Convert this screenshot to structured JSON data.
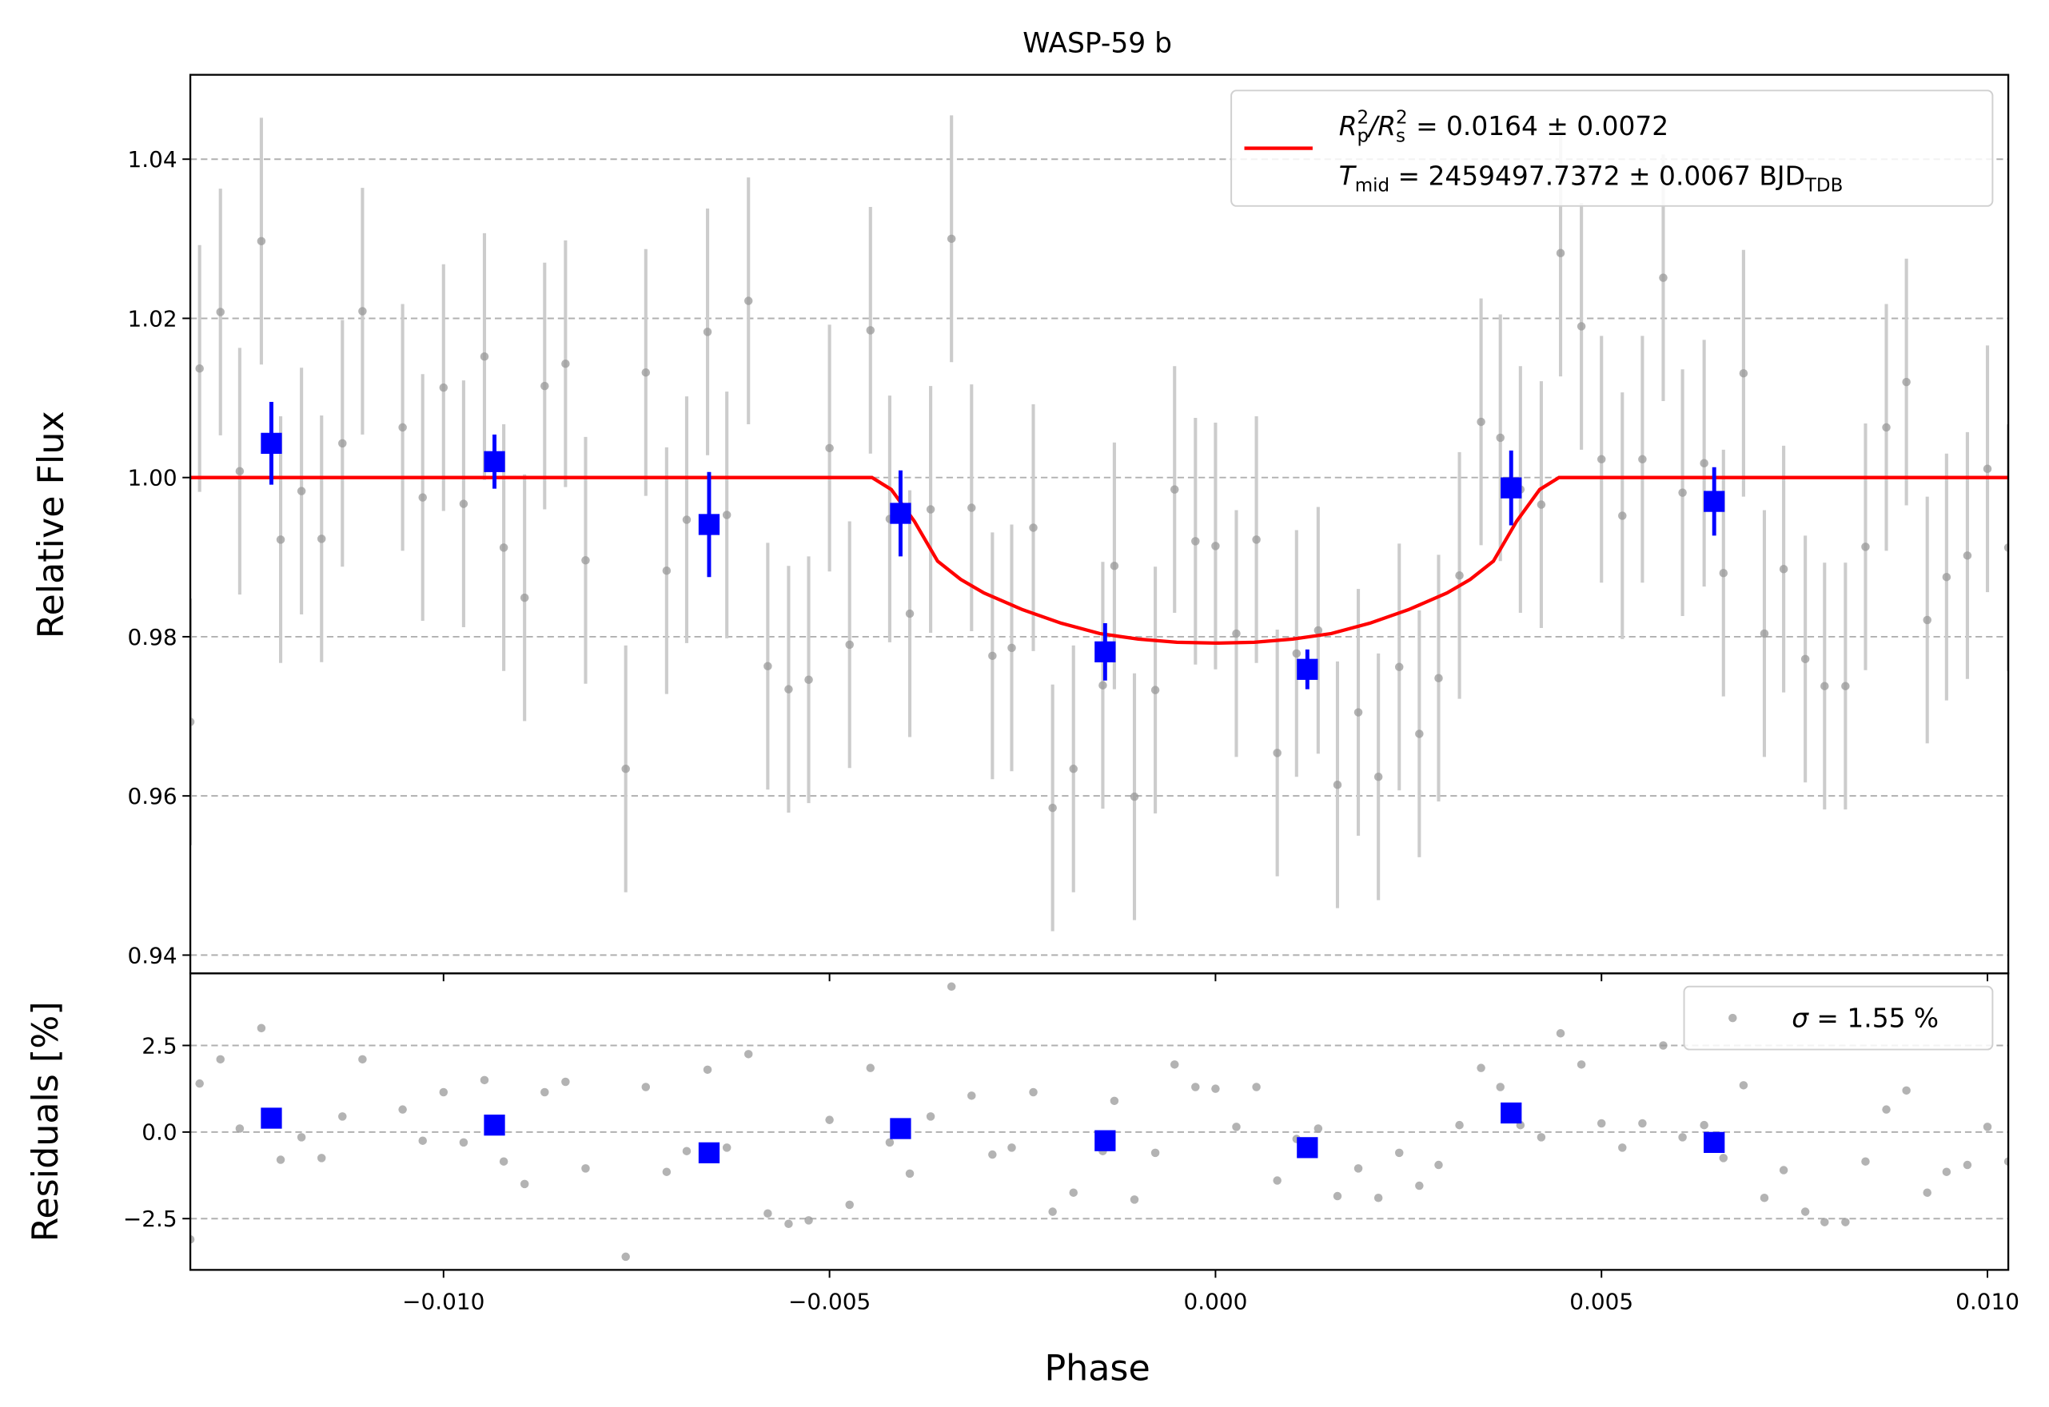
{
  "chart_data": [
    {
      "type": "scatter",
      "title": "WASP-59 b",
      "ylabel": "Relative Flux",
      "ylim": [
        0.9377,
        1.0506
      ],
      "yticks": [
        0.94,
        0.96,
        0.98,
        {
          "value": 1,
          "label": "1.00"
        },
        1.02,
        1.04
      ],
      "grid": true,
      "legend": "upper right",
      "series": [
        {
          "kind": "line",
          "color": "#ff0000",
          "name": [
            {
              "text": "R",
              "style": "italic"
            },
            {
              "text": "p",
              "style": "sub"
            },
            {
              "text": "2",
              "style": "sup"
            },
            {
              "text": "/",
              "style": "italic"
            },
            {
              "text": "R",
              "style": "italic"
            },
            {
              "text": "s",
              "style": "sub"
            },
            {
              "text": "2",
              "style": "sup"
            },
            {
              "text": " = 0.0164 ± 0.0072",
              "style": "normal"
            },
            {
              "text": "T",
              "style": "italic",
              "line": 1
            },
            {
              "text": "mid",
              "style": "sub"
            },
            {
              "text": " = 2459497.7372 ± 0.0067 BJD",
              "style": "normal"
            },
            {
              "text": "TDB",
              "style": "sub"
            }
          ],
          "x": [
            -0.01328,
            -0.00445,
            -0.0042,
            -0.0039,
            -0.0036,
            -0.0033,
            -0.003,
            -0.0025,
            -0.002,
            -0.0015,
            -0.001,
            -0.0005,
            0,
            0.0005,
            0.001,
            0.0015,
            0.002,
            0.0025,
            0.003,
            0.0033,
            0.0036,
            0.0039,
            0.0042,
            0.00445,
            0.01027
          ],
          "values": [
            1,
            1,
            0.9985,
            0.9945,
            0.9895,
            0.9872,
            0.9855,
            0.9834,
            0.9817,
            0.9804,
            0.9797,
            0.9793,
            0.9792,
            0.9793,
            0.9797,
            0.9804,
            0.9817,
            0.9834,
            0.9855,
            0.9872,
            0.9895,
            0.9945,
            0.9985,
            1,
            1
          ]
        },
        {
          "kind": "errorbar",
          "color": "#999999",
          "ecolor": "#cccccc",
          "yerr": 0.0155,
          "x": [
            -0.01328,
            -0.01316,
            -0.01289,
            -0.01264,
            -0.01236,
            -0.01211,
            -0.01184,
            -0.01158,
            -0.01131,
            -0.01105,
            -0.01053,
            -0.01027,
            -0.01,
            -0.00974,
            -0.00947,
            -0.00922,
            -0.00895,
            -0.00869,
            -0.00842,
            -0.00816,
            -0.00764,
            -0.00738,
            -0.00711,
            -0.00685,
            -0.00658,
            -0.00633,
            -0.00605,
            -0.0058,
            -0.00553,
            -0.00527,
            -0.005,
            -0.00474,
            -0.00447,
            -0.00422,
            -0.00396,
            -0.00369,
            -0.00342,
            -0.00316,
            -0.00289,
            -0.00264,
            -0.00236,
            -0.00211,
            -0.00184,
            -0.00146,
            -0.00131,
            -0.00105,
            -0.00078,
            -0.00053,
            -0.00026,
            0,
            0.00027,
            0.00053,
            0.0008,
            0.00105,
            0.00133,
            0.00158,
            0.00185,
            0.00211,
            0.00238,
            0.00264,
            0.00289,
            0.00316,
            0.00344,
            0.00369,
            0.00395,
            0.00422,
            0.00447,
            0.00474,
            0.005,
            0.00527,
            0.00553,
            0.0058,
            0.00605,
            0.00633,
            0.00658,
            0.00684,
            0.00711,
            0.00736,
            0.00764,
            0.00789,
            0.00816,
            0.00842,
            0.00869,
            0.00895,
            0.00922,
            0.00947,
            0.00974,
            0.01,
            0.01027
          ],
          "values": [
            0.9693,
            1.0137,
            1.0208,
            1.0008,
            1.0297,
            0.9922,
            0.9983,
            0.9923,
            1.0043,
            1.0209,
            1.0063,
            0.9975,
            1.0113,
            0.9967,
            1.0152,
            0.9912,
            0.9849,
            1.0115,
            1.0143,
            0.9896,
            0.9634,
            1.0132,
            0.9883,
            0.9947,
            1.0183,
            0.9953,
            1.0222,
            0.9763,
            0.9734,
            0.9746,
            1.0037,
            0.979,
            1.0185,
            0.9948,
            0.9829,
            0.996,
            1.03,
            0.9962,
            0.9776,
            0.9786,
            0.9937,
            0.9585,
            0.9634,
            0.9739,
            0.9889,
            0.9599,
            0.9733,
            0.9985,
            0.992,
            0.9914,
            0.9804,
            0.9922,
            0.9654,
            0.9779,
            0.9808,
            0.9614,
            0.9705,
            0.9624,
            0.9762,
            0.9678,
            0.9748,
            0.9877,
            1.007,
            1.005,
            0.9985,
            0.9966,
            1.0282,
            1.019,
            1.0023,
            0.9952,
            1.0023,
            1.0251,
            0.9981,
            1.0018,
            0.988,
            1.0131,
            0.9804,
            0.9885,
            0.9772,
            0.9738,
            0.9738,
            0.9913,
            1.0063,
            1.012,
            0.9821,
            0.9875,
            0.9902,
            1.0011,
            0.9912
          ]
        },
        {
          "kind": "binned",
          "color": "#0000ff",
          "x": [
            -0.01223,
            -0.00934,
            -0.00656,
            -0.00408,
            -0.00143,
            0.00119,
            0.00383,
            0.00646
          ],
          "values": [
            1.0043,
            1.002,
            0.9941,
            0.9955,
            0.9781,
            0.9759,
            0.9987,
            0.997
          ],
          "errors": [
            0.0052,
            0.0034,
            0.0066,
            0.0054,
            0.0036,
            0.0025,
            0.0047,
            0.0043
          ]
        }
      ]
    },
    {
      "type": "scatter",
      "xlabel": "Phase",
      "ylabel": "Residuals [%]",
      "xlim": [
        -0.01328,
        0.01027
      ],
      "xticks": [
        {
          "value": -0.01,
          "label": "−0.010"
        },
        {
          "value": -0.005,
          "label": "−0.005"
        },
        {
          "value": 0,
          "label": "0.000"
        },
        {
          "value": 0.005,
          "label": "0.005"
        },
        {
          "value": 0.01,
          "label": "0.010"
        }
      ],
      "ylim": [
        -3.98,
        4.58
      ],
      "yticks": [
        {
          "value": -2.5,
          "label": "−2.5"
        },
        {
          "value": 0,
          "label": "0.0"
        },
        2.5
      ],
      "grid": true,
      "legend": "upper right",
      "series": [
        {
          "kind": "points",
          "color": "#999999",
          "name": [
            {
              "text": "σ",
              "style": "italic"
            },
            {
              "text": " = 1.55 %",
              "style": "normal"
            }
          ],
          "x": [
            -0.01328,
            -0.01316,
            -0.01289,
            -0.01264,
            -0.01236,
            -0.01211,
            -0.01184,
            -0.01158,
            -0.01131,
            -0.01105,
            -0.01053,
            -0.01027,
            -0.01,
            -0.00974,
            -0.00947,
            -0.00922,
            -0.00895,
            -0.00869,
            -0.00842,
            -0.00816,
            -0.00764,
            -0.00738,
            -0.00711,
            -0.00685,
            -0.00658,
            -0.00633,
            -0.00605,
            -0.0058,
            -0.00553,
            -0.00527,
            -0.005,
            -0.00474,
            -0.00447,
            -0.00422,
            -0.00396,
            -0.00369,
            -0.00342,
            -0.00316,
            -0.00289,
            -0.00264,
            -0.00236,
            -0.00211,
            -0.00184,
            -0.00146,
            -0.00131,
            -0.00105,
            -0.00078,
            -0.00053,
            -0.00026,
            0,
            0.00027,
            0.00053,
            0.0008,
            0.00105,
            0.00133,
            0.00158,
            0.00185,
            0.00211,
            0.00238,
            0.00264,
            0.00289,
            0.00316,
            0.00344,
            0.00369,
            0.00395,
            0.00422,
            0.00447,
            0.00474,
            0.005,
            0.00527,
            0.00553,
            0.0058,
            0.00605,
            0.00633,
            0.00658,
            0.00684,
            0.00711,
            0.00736,
            0.00764,
            0.00789,
            0.00816,
            0.00842,
            0.00869,
            0.00895,
            0.00922,
            0.00947,
            0.00974,
            0.01,
            0.01027
          ],
          "values": [
            -3.1,
            1.4,
            2.1,
            0.1,
            3.0,
            -0.8,
            -0.15,
            -0.75,
            0.45,
            2.1,
            0.65,
            -0.25,
            1.15,
            -0.3,
            1.5,
            -0.85,
            -1.5,
            1.15,
            1.45,
            -1.05,
            -3.6,
            1.3,
            -1.15,
            -0.55,
            1.8,
            -0.45,
            2.25,
            -2.35,
            -2.65,
            -2.55,
            0.35,
            -2.1,
            1.85,
            -0.3,
            -1.2,
            0.45,
            4.2,
            1.05,
            -0.65,
            -0.45,
            1.15,
            -2.3,
            -1.75,
            -0.55,
            0.9,
            -1.95,
            -0.6,
            1.95,
            1.3,
            1.25,
            0.15,
            1.3,
            -1.4,
            -0.2,
            0.1,
            -1.85,
            -1.05,
            -1.9,
            -0.6,
            -1.55,
            -0.95,
            0.2,
            1.85,
            1.3,
            0.2,
            -0.15,
            2.85,
            1.95,
            0.25,
            -0.45,
            0.25,
            2.5,
            -0.15,
            0.2,
            -0.75,
            1.35,
            -1.9,
            -1.1,
            -2.3,
            -2.6,
            -2.6,
            -0.85,
            0.65,
            1.2,
            -1.75,
            -1.15,
            -0.95,
            0.15,
            -0.85
          ]
        },
        {
          "kind": "binned-points",
          "color": "#0000ff",
          "x": [
            -0.01223,
            -0.00934,
            -0.00656,
            -0.00408,
            -0.00143,
            0.00119,
            0.00383,
            0.00646
          ],
          "values": [
            0.4,
            0.2,
            -0.6,
            0.1,
            -0.25,
            -0.45,
            0.55,
            -0.3
          ]
        }
      ]
    }
  ]
}
